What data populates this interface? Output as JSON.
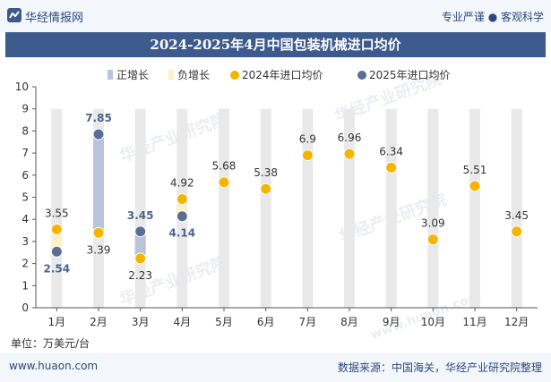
{
  "header": {
    "brand": "华经情报网",
    "tagline": "专业严谨 ● 客观科学",
    "title": "2024-2025年4月中国包装机械进口均价"
  },
  "footer": {
    "website": "www.huaon.com",
    "source": "数据来源：中国海关，华经产业研究院整理"
  },
  "unit_label": "单位：万美元/台",
  "watermark_text": "华经产业研究院",
  "watermark_url": "www.huaon.com",
  "colors": {
    "title_bg": "#3c5a8c",
    "up_bar": "#b8c4dc",
    "down_bar": "#fdf1c8",
    "series_2024": "#f5b400",
    "series_2025": "#5a6e96",
    "column_bg": "#e9e9e9"
  },
  "chart_data": {
    "type": "line",
    "categories": [
      "1月",
      "2月",
      "3月",
      "4月",
      "5月",
      "6月",
      "7月",
      "8月",
      "9月",
      "10月",
      "11月",
      "12月"
    ],
    "ylim": [
      0,
      10
    ],
    "yticks": [
      0,
      1,
      2,
      3,
      4,
      5,
      6,
      7,
      8,
      9,
      10
    ],
    "legend": {
      "position": "top",
      "items": [
        "正增长",
        "负增长",
        "2024年进口均价",
        "2025年进口均价"
      ]
    },
    "series": [
      {
        "name": "2024年进口均价",
        "values": [
          3.55,
          3.39,
          2.23,
          4.92,
          5.68,
          5.38,
          6.9,
          6.96,
          6.34,
          3.09,
          5.51,
          3.45
        ]
      },
      {
        "name": "2025年进口均价",
        "values": [
          2.54,
          7.85,
          3.45,
          4.14,
          null,
          null,
          null,
          null,
          null,
          null,
          null,
          null
        ]
      }
    ],
    "label_text_2024": [
      "3.55",
      "3.39",
      "2.23",
      "4.92",
      "5.68",
      "5.38",
      "6.9",
      "6.96",
      "6.34",
      "3.09",
      "5.51",
      "3.45"
    ],
    "label_text_2025": [
      "2.54",
      "7.85",
      "3.45",
      "4.14"
    ]
  }
}
